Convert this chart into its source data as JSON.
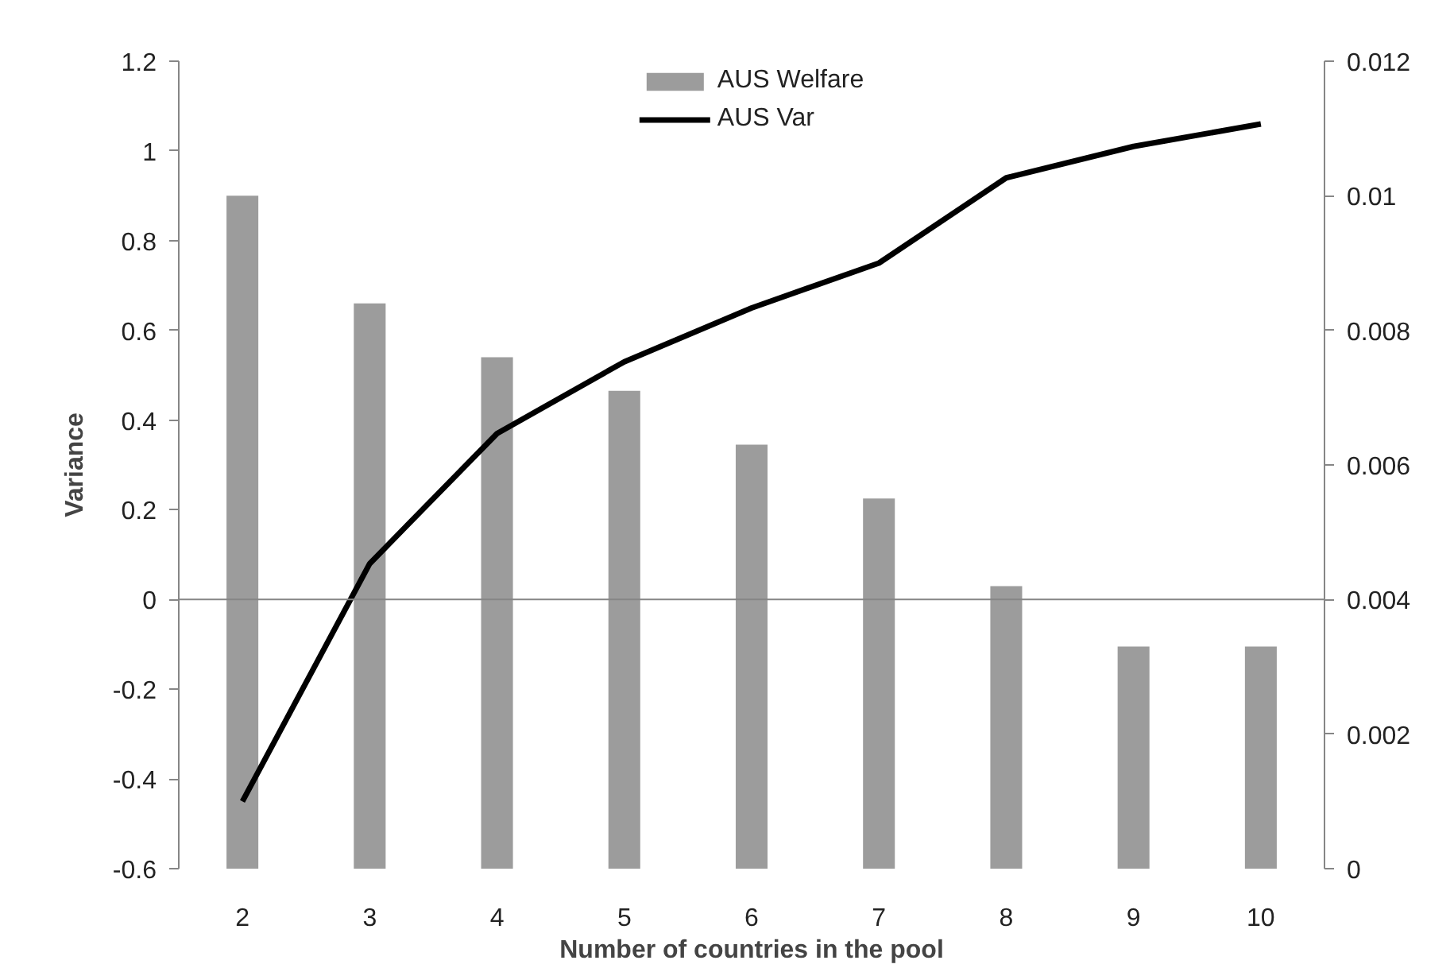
{
  "chart_data": {
    "type": "bar",
    "xlabel": "Number of countries in the pool",
    "ylabel": "Variance",
    "categories": [
      "2",
      "3",
      "4",
      "5",
      "6",
      "7",
      "8",
      "9",
      "10"
    ],
    "series": [
      {
        "name": "AUS Welfare",
        "axis": "y2",
        "color": "#9c9c9c",
        "values": [
          0.01,
          0.0084,
          0.0076,
          0.0071,
          0.0063,
          0.0055,
          0.0042,
          0.0033,
          0.0033
        ]
      },
      {
        "name": "AUS Var",
        "type": "line",
        "color": "#000000",
        "values": [
          -0.45,
          0.08,
          0.37,
          0.53,
          0.65,
          0.75,
          0.94,
          1.01,
          1.06
        ]
      }
    ],
    "ylim": [
      -0.6,
      1.2
    ],
    "yticks": [
      -0.6,
      -0.4,
      -0.2,
      0,
      0.2,
      0.4,
      0.6,
      0.8,
      1,
      1.2
    ],
    "y2lim": [
      0,
      0.012
    ],
    "y2ticks": [
      0,
      0.002,
      0.004,
      0.006,
      0.008,
      0.01,
      0.012
    ],
    "ref_lines": [
      {
        "axis": "y",
        "value": 0,
        "color": "#868686"
      }
    ],
    "legend": "top",
    "grid": false
  }
}
